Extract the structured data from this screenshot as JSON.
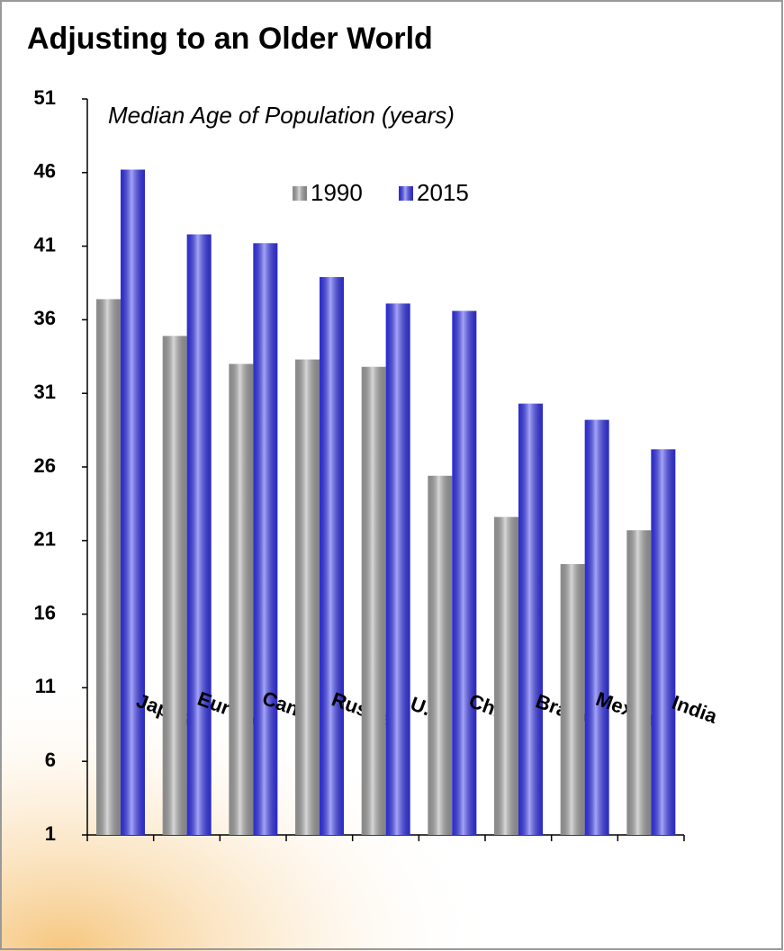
{
  "chart_data": {
    "type": "bar",
    "title": "Adjusting to an Older World",
    "subtitle": "Median Age of Population (years)",
    "categories": [
      "Japan",
      "Europe",
      "Canada",
      "Russia",
      "U.S.",
      "China",
      "Brazil",
      "Mexico",
      "India"
    ],
    "series": [
      {
        "name": "1990",
        "color": "#a6a6a6",
        "values": [
          37.4,
          34.9,
          33.0,
          33.3,
          32.8,
          25.4,
          22.6,
          19.4,
          21.7
        ]
      },
      {
        "name": "2015",
        "color": "#3535f5",
        "values": [
          46.2,
          41.8,
          41.2,
          38.9,
          37.1,
          36.6,
          30.3,
          29.2,
          27.2
        ]
      }
    ],
    "ylim": [
      1,
      51
    ],
    "yticks": [
      1,
      6,
      11,
      16,
      21,
      26,
      31,
      36,
      41,
      46,
      51
    ],
    "grid": false
  }
}
